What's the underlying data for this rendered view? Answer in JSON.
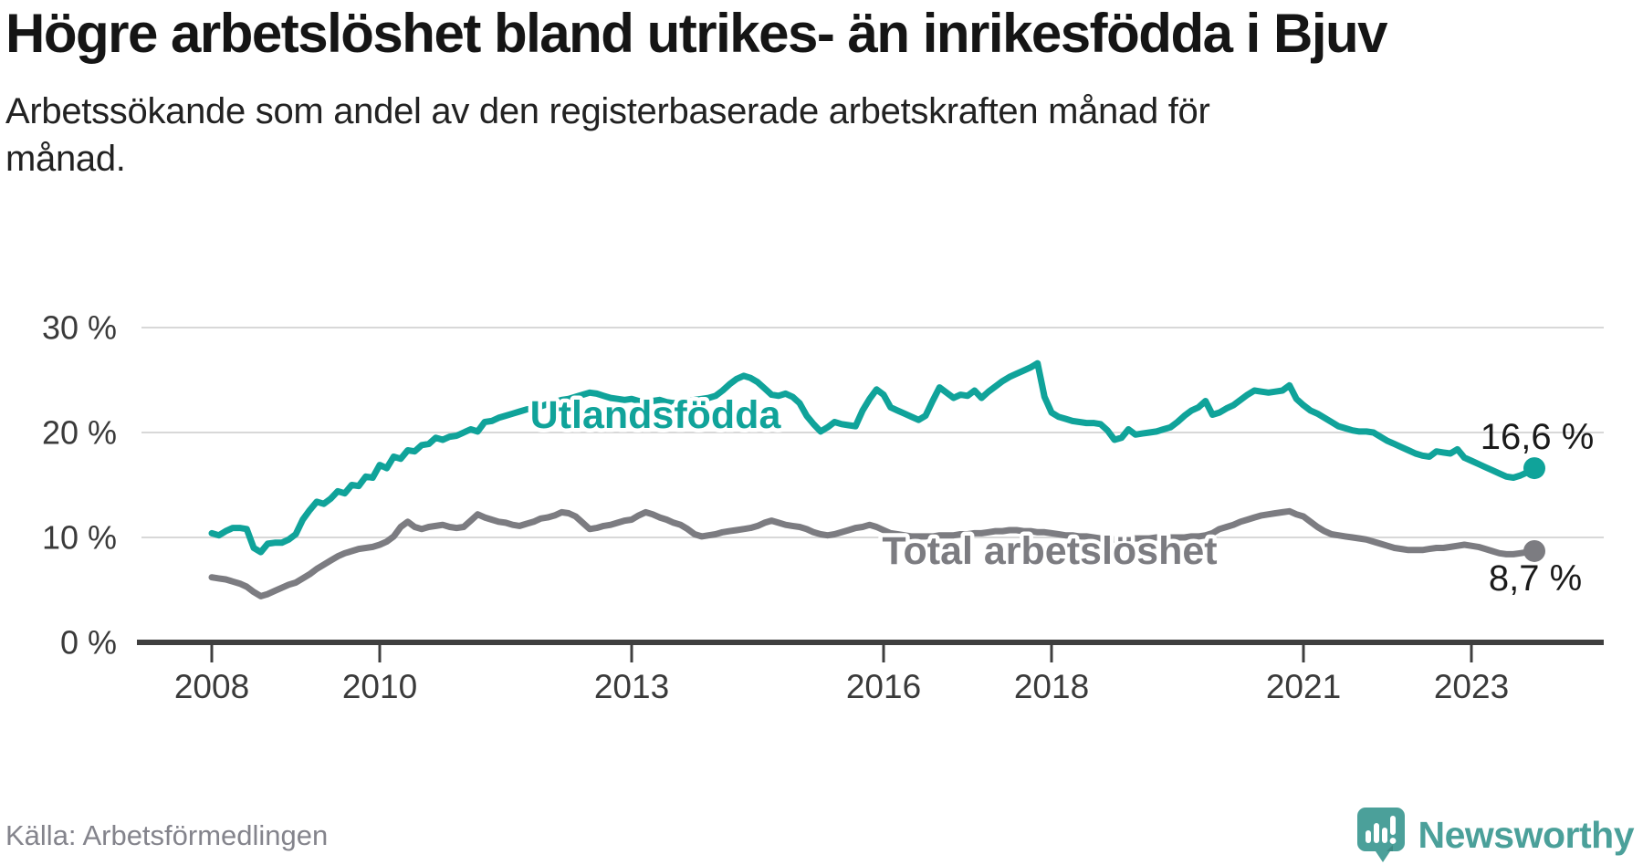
{
  "header": {
    "title": "Högre arbetslöshet bland utrikes- än inrikesfödda i Bjuv",
    "subtitle": "Arbetssökande som andel av den registerbaserade arbetskraften månad för månad."
  },
  "footer": {
    "source": "Källa: Arbetsförmedlingen",
    "logo_text": "Newsworthy"
  },
  "colors": {
    "accent_teal": "#10a39a",
    "series_gray": "#7c7c81",
    "logo_teal": "#4ba09a",
    "grid": "#d8d8d8",
    "axis": "#3f3f3f",
    "tick_text": "#3a3a3a",
    "value_text": "#1a1a1a"
  },
  "chart_data": {
    "type": "line",
    "unit": "%",
    "frequency": "monthly",
    "x_start": "2008-01",
    "x_end": "2023-10",
    "ylim": [
      0,
      32
    ],
    "grid": "horizontal",
    "legend_position": "inline-labels",
    "y_ticks": [
      {
        "value": 30,
        "label": "30 %"
      },
      {
        "value": 20,
        "label": "20 %"
      },
      {
        "value": 10,
        "label": "10 %"
      },
      {
        "value": 0,
        "label": "0 %"
      }
    ],
    "x_ticks": [
      {
        "year": 2008,
        "label": "2008"
      },
      {
        "year": 2010,
        "label": "2010"
      },
      {
        "year": 2013,
        "label": "2013"
      },
      {
        "year": 2016,
        "label": "2016"
      },
      {
        "year": 2018,
        "label": "2018"
      },
      {
        "year": 2021,
        "label": "2021"
      },
      {
        "year": 2023,
        "label": "2023"
      }
    ],
    "series": [
      {
        "name": "Utlandsfödda",
        "color": "#10a39a",
        "end_label": "16,6 %",
        "end_value": 16.6,
        "values": [
          10.4,
          10.2,
          10.6,
          10.9,
          10.9,
          10.8,
          9.0,
          8.6,
          9.4,
          9.5,
          9.5,
          9.8,
          10.3,
          11.7,
          12.6,
          13.4,
          13.2,
          13.7,
          14.4,
          14.2,
          15.0,
          14.9,
          15.8,
          15.7,
          16.9,
          16.6,
          17.7,
          17.5,
          18.3,
          18.2,
          18.8,
          18.9,
          19.5,
          19.3,
          19.6,
          19.7,
          20.0,
          20.3,
          20.1,
          21.0,
          21.1,
          21.4,
          21.6,
          21.8,
          22.0,
          22.2,
          22.3,
          22.5,
          22.7,
          22.9,
          23.1,
          23.2,
          23.4,
          23.6,
          23.8,
          23.7,
          23.5,
          23.3,
          23.2,
          23.1,
          23.2,
          23.0,
          22.9,
          23.0,
          23.1,
          22.9,
          22.8,
          22.9,
          23.0,
          23.1,
          23.2,
          23.3,
          23.5,
          24.0,
          24.6,
          25.1,
          25.4,
          25.2,
          24.8,
          24.2,
          23.6,
          23.5,
          23.7,
          23.4,
          22.8,
          21.6,
          20.8,
          20.1,
          20.5,
          21.0,
          20.8,
          20.7,
          20.6,
          22.1,
          23.2,
          24.1,
          23.6,
          22.4,
          22.1,
          21.8,
          21.5,
          21.2,
          21.6,
          23.0,
          24.3,
          23.8,
          23.3,
          23.6,
          23.5,
          24.0,
          23.3,
          23.9,
          24.4,
          24.9,
          25.3,
          25.6,
          25.9,
          26.2,
          26.6,
          23.4,
          21.9,
          21.5,
          21.3,
          21.1,
          21.0,
          20.9,
          20.9,
          20.8,
          20.2,
          19.3,
          19.5,
          20.3,
          19.8,
          19.9,
          20.0,
          20.1,
          20.3,
          20.5,
          21.0,
          21.6,
          22.1,
          22.4,
          23.0,
          21.7,
          21.9,
          22.3,
          22.6,
          23.1,
          23.6,
          24.0,
          23.9,
          23.8,
          23.9,
          24.0,
          24.5,
          23.2,
          22.6,
          22.1,
          21.8,
          21.4,
          21.0,
          20.6,
          20.4,
          20.2,
          20.1,
          20.1,
          20.0,
          19.6,
          19.2,
          18.9,
          18.6,
          18.3,
          18.0,
          17.8,
          17.7,
          18.2,
          18.1,
          18.0,
          18.4,
          17.6,
          17.3,
          17.0,
          16.7,
          16.4,
          16.1,
          15.8,
          15.7,
          15.9,
          16.2,
          16.6
        ]
      },
      {
        "name": "Total arbetslöshet",
        "color": "#7c7c81",
        "end_label": "8,7 %",
        "end_value": 8.7,
        "values": [
          6.2,
          6.1,
          6.0,
          5.8,
          5.6,
          5.3,
          4.8,
          4.4,
          4.6,
          4.9,
          5.2,
          5.5,
          5.7,
          6.1,
          6.5,
          7.0,
          7.4,
          7.8,
          8.2,
          8.5,
          8.7,
          8.9,
          9.0,
          9.1,
          9.3,
          9.6,
          10.1,
          11.0,
          11.5,
          11.0,
          10.8,
          11.0,
          11.1,
          11.2,
          11.0,
          10.9,
          11.0,
          11.6,
          12.2,
          11.9,
          11.7,
          11.5,
          11.4,
          11.2,
          11.1,
          11.3,
          11.5,
          11.8,
          11.9,
          12.1,
          12.4,
          12.3,
          12.0,
          11.4,
          10.8,
          10.9,
          11.1,
          11.2,
          11.4,
          11.6,
          11.7,
          12.1,
          12.4,
          12.2,
          11.9,
          11.7,
          11.4,
          11.2,
          10.8,
          10.3,
          10.1,
          10.2,
          10.3,
          10.5,
          10.6,
          10.7,
          10.8,
          10.9,
          11.1,
          11.4,
          11.6,
          11.4,
          11.2,
          11.1,
          11.0,
          10.8,
          10.5,
          10.3,
          10.2,
          10.3,
          10.5,
          10.7,
          10.9,
          11.0,
          11.2,
          11.0,
          10.7,
          10.4,
          10.3,
          10.2,
          10.1,
          10.1,
          10.1,
          10.1,
          10.2,
          10.2,
          10.2,
          10.3,
          10.3,
          10.4,
          10.4,
          10.5,
          10.6,
          10.6,
          10.7,
          10.7,
          10.6,
          10.6,
          10.5,
          10.5,
          10.4,
          10.3,
          10.2,
          10.2,
          10.1,
          10.1,
          10.0,
          9.9,
          9.8,
          9.8,
          9.8,
          9.9,
          9.9,
          9.9,
          9.9,
          10.0,
          10.0,
          10.0,
          10.0,
          10.0,
          10.1,
          10.1,
          10.2,
          10.4,
          10.8,
          11.0,
          11.2,
          11.5,
          11.7,
          11.9,
          12.1,
          12.2,
          12.3,
          12.4,
          12.5,
          12.2,
          12.0,
          11.5,
          11.0,
          10.6,
          10.3,
          10.2,
          10.1,
          10.0,
          9.9,
          9.8,
          9.6,
          9.4,
          9.2,
          9.0,
          8.9,
          8.8,
          8.8,
          8.8,
          8.9,
          9.0,
          9.0,
          9.1,
          9.2,
          9.3,
          9.2,
          9.1,
          8.9,
          8.7,
          8.5,
          8.4,
          8.4,
          8.5,
          8.6,
          8.7
        ]
      }
    ]
  }
}
